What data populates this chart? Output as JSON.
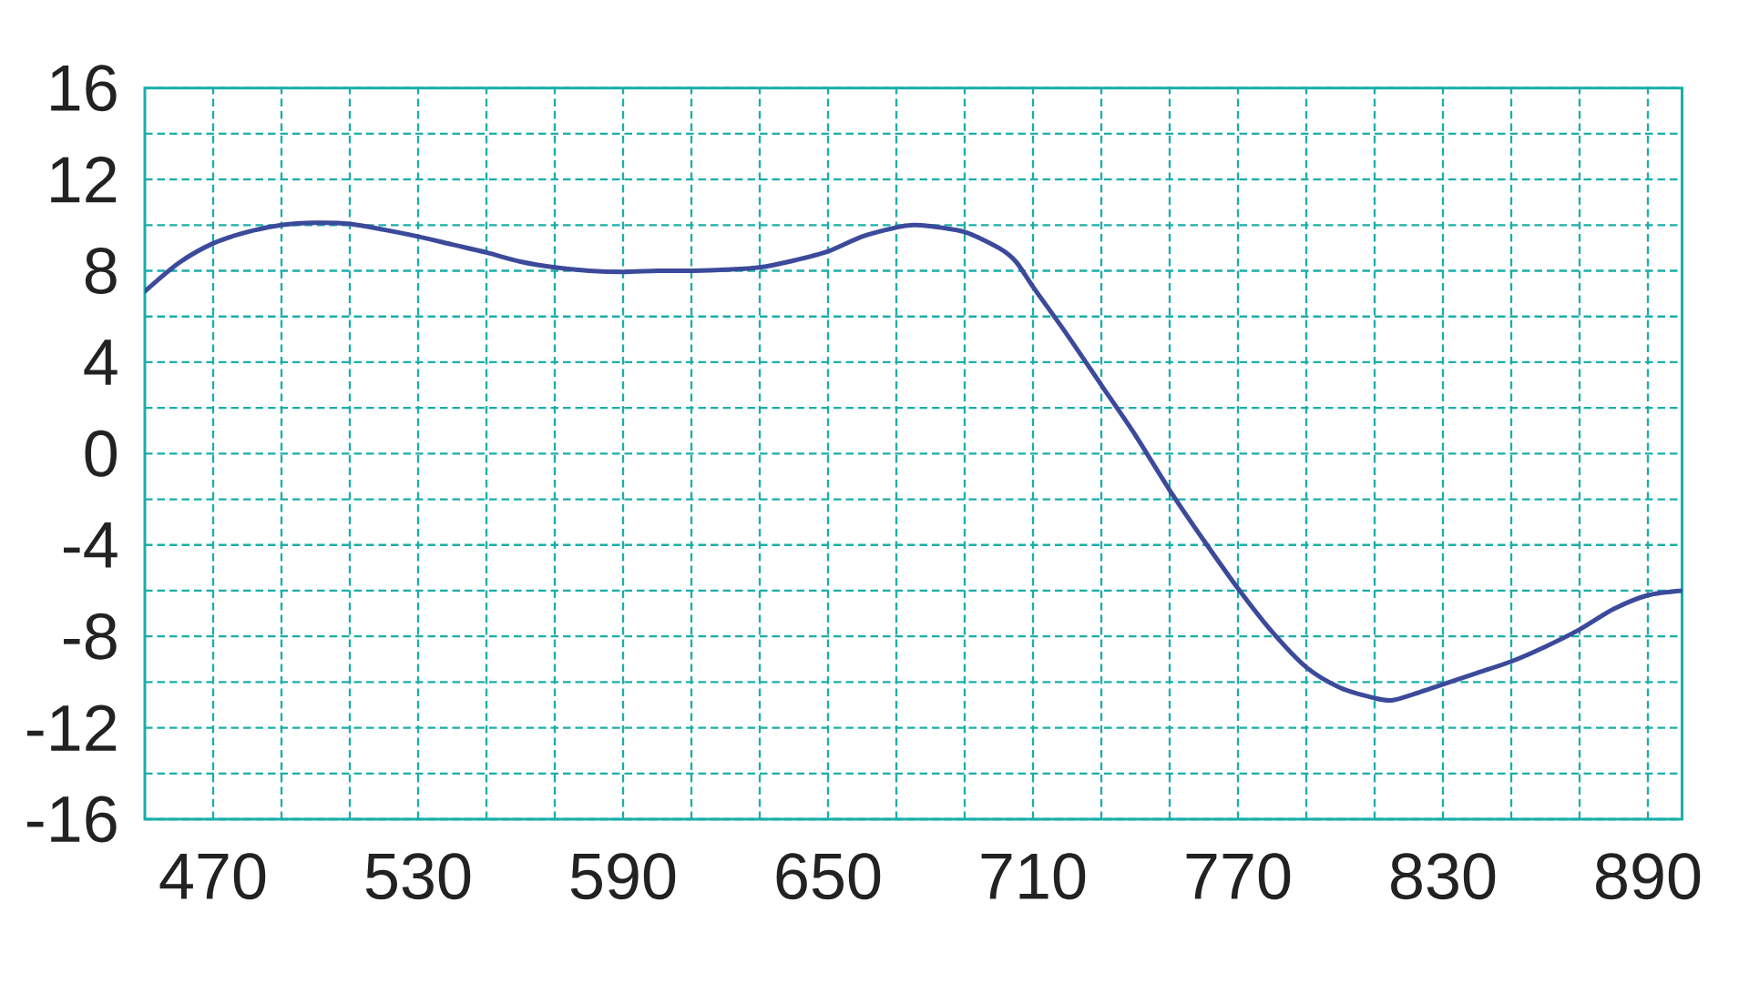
{
  "chart_data": {
    "type": "line",
    "x": [
      450,
      460,
      470,
      480,
      490,
      500,
      510,
      520,
      530,
      540,
      550,
      560,
      570,
      580,
      590,
      600,
      610,
      620,
      630,
      640,
      650,
      660,
      670,
      675,
      680,
      690,
      700,
      705,
      710,
      720,
      730,
      740,
      750,
      760,
      770,
      780,
      790,
      800,
      810,
      815,
      820,
      830,
      840,
      850,
      860,
      870,
      880,
      890,
      900
    ],
    "series": [
      {
        "color": "#3c4a9b",
        "values": [
          7.1,
          8.35,
          9.2,
          9.7,
          10.0,
          10.1,
          10.05,
          9.8,
          9.5,
          9.15,
          8.8,
          8.4,
          8.15,
          8.0,
          7.95,
          8.0,
          8.0,
          8.05,
          8.15,
          8.45,
          8.85,
          9.5,
          9.9,
          10.0,
          9.95,
          9.7,
          9.0,
          8.4,
          7.3,
          5.2,
          3.0,
          0.8,
          -1.6,
          -3.8,
          -5.9,
          -7.8,
          -9.35,
          -10.25,
          -10.7,
          -10.8,
          -10.6,
          -10.1,
          -9.6,
          -9.1,
          -8.45,
          -7.7,
          -6.8,
          -6.2,
          -6.0
        ]
      }
    ],
    "xlim": [
      450,
      900
    ],
    "ylim": [
      -16,
      16
    ],
    "xticks": [
      470,
      {
        "value": 490,
        "label": null
      },
      {
        "value": 510,
        "label": null
      },
      530,
      {
        "value": 550,
        "label": null
      },
      {
        "value": 570,
        "label": null
      },
      590,
      {
        "value": 610,
        "label": null
      },
      {
        "value": 630,
        "label": null
      },
      650,
      {
        "value": 670,
        "label": null
      },
      {
        "value": 690,
        "label": null
      },
      710,
      {
        "value": 730,
        "label": null
      },
      {
        "value": 750,
        "label": null
      },
      770,
      {
        "value": 790,
        "label": null
      },
      {
        "value": 810,
        "label": null
      },
      830,
      {
        "value": 850,
        "label": null
      },
      {
        "value": 870,
        "label": null
      },
      890
    ],
    "yticks": [
      -16,
      {
        "value": -14,
        "label": null
      },
      -12,
      {
        "value": -10,
        "label": null
      },
      -8,
      {
        "value": -6,
        "label": null
      },
      -4,
      {
        "value": -2,
        "label": null
      },
      0,
      {
        "value": 2,
        "label": null
      },
      4,
      {
        "value": 6,
        "label": null
      },
      8,
      {
        "value": 10,
        "label": null
      },
      12,
      {
        "value": 14,
        "label": null
      },
      16
    ],
    "grid": true,
    "line_style": "solid"
  }
}
